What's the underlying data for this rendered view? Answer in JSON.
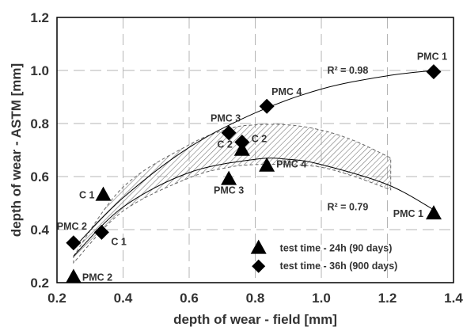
{
  "chart_data": {
    "type": "scatter",
    "xlabel": "depth of wear - field [mm]",
    "ylabel": "depth of wear - ASTM [mm]",
    "xlim": [
      0.2,
      1.4
    ],
    "ylim": [
      0.2,
      1.2
    ],
    "x_ticks": [
      "0.2",
      "0.4",
      "0.6",
      "0.8",
      "1.0",
      "1.2",
      "1.4"
    ],
    "y_ticks": [
      "0.2",
      "0.4",
      "0.6",
      "0.8",
      "1.0",
      "1.2"
    ],
    "grid": true,
    "legend_position": "bottom-right",
    "series": [
      {
        "name": "test time - 24h (90 days)",
        "marker": "triangle",
        "color": "#000000",
        "points": [
          {
            "x": 0.25,
            "y": 0.22,
            "label": "PMC 2"
          },
          {
            "x": 0.34,
            "y": 0.53,
            "label": "C 1"
          },
          {
            "x": 0.72,
            "y": 0.59,
            "label": "PMC 3"
          },
          {
            "x": 0.76,
            "y": 0.7,
            "label": "C 2"
          },
          {
            "x": 0.835,
            "y": 0.64,
            "label": "PMC 4"
          },
          {
            "x": 1.34,
            "y": 0.46,
            "label": "PMC 1"
          }
        ]
      },
      {
        "name": "test time - 36h (900 days)",
        "marker": "diamond",
        "color": "#000000",
        "points": [
          {
            "x": 0.25,
            "y": 0.35,
            "label": "PMC 2"
          },
          {
            "x": 0.335,
            "y": 0.39,
            "label": "C 1"
          },
          {
            "x": 0.72,
            "y": 0.765,
            "label": "PMC 3"
          },
          {
            "x": 0.76,
            "y": 0.73,
            "label": "C 2"
          },
          {
            "x": 0.835,
            "y": 0.865,
            "label": "PMC 4"
          },
          {
            "x": 1.34,
            "y": 0.995,
            "label": "PMC 1"
          }
        ]
      }
    ],
    "trendlines": [
      {
        "series": "test time - 36h (900 days)",
        "type": "polynomial",
        "r2_label": "R² = 0.98",
        "samples": [
          [
            0.25,
            0.33
          ],
          [
            0.4,
            0.52
          ],
          [
            0.6,
            0.71
          ],
          [
            0.8,
            0.84
          ],
          [
            1.0,
            0.93
          ],
          [
            1.2,
            0.98
          ],
          [
            1.34,
            1.0
          ]
        ]
      },
      {
        "series": "test time - 24h (90 days)",
        "type": "polynomial",
        "r2_label": "R² = 0.79",
        "samples": [
          [
            0.25,
            0.3
          ],
          [
            0.4,
            0.485
          ],
          [
            0.6,
            0.615
          ],
          [
            0.8,
            0.665
          ],
          [
            0.9,
            0.665
          ],
          [
            1.0,
            0.645
          ],
          [
            1.2,
            0.57
          ],
          [
            1.34,
            0.475
          ]
        ]
      }
    ],
    "band": {
      "style": "hatched",
      "upper": [
        [
          0.25,
          0.3
        ],
        [
          0.4,
          0.56
        ],
        [
          0.6,
          0.72
        ],
        [
          0.72,
          0.78
        ],
        [
          0.8,
          0.795
        ],
        [
          0.9,
          0.795
        ],
        [
          1.0,
          0.775
        ],
        [
          1.1,
          0.735
        ],
        [
          1.21,
          0.67
        ]
      ],
      "lower": [
        [
          0.25,
          0.275
        ],
        [
          0.4,
          0.47
        ],
        [
          0.6,
          0.595
        ],
        [
          0.72,
          0.635
        ],
        [
          0.8,
          0.645
        ],
        [
          0.9,
          0.645
        ],
        [
          1.0,
          0.635
        ],
        [
          1.1,
          0.6
        ],
        [
          1.21,
          0.55
        ]
      ]
    }
  }
}
